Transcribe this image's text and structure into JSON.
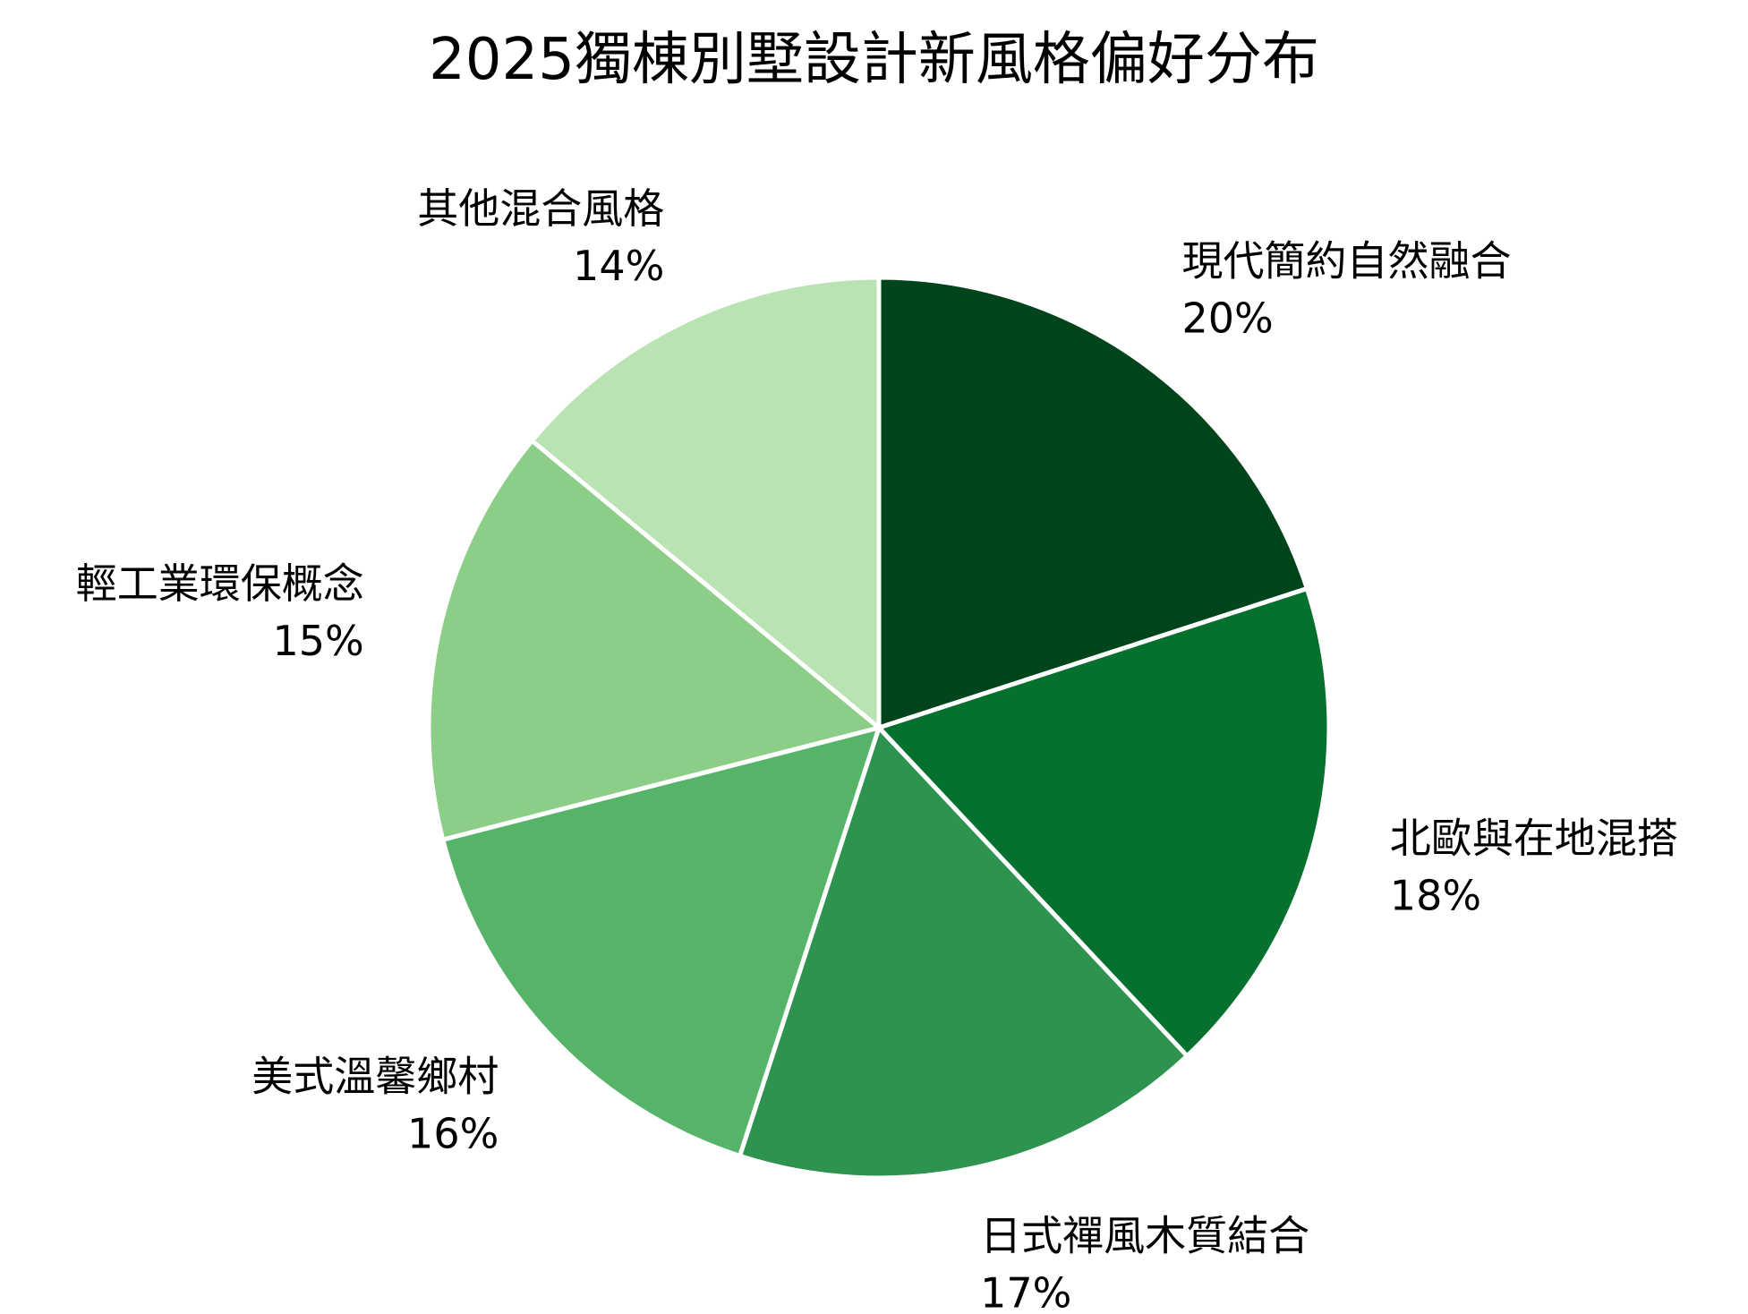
{
  "chart_data": {
    "type": "pie",
    "title": "2025獨棟別墅設計新風格偏好分布",
    "labels": [
      "現代簡約自然融合",
      "北歐與在地混搭",
      "日式禪風木質結合",
      "美式溫馨鄉村",
      "輕工業環保概念",
      "其他混合風格"
    ],
    "values": [
      20,
      18,
      17,
      16,
      15,
      14
    ],
    "value_labels": [
      "20%",
      "18%",
      "17%",
      "16%",
      "15%",
      "14%"
    ],
    "colors": [
      "#00441b",
      "#06702f",
      "#2d934f",
      "#56b469",
      "#8ccd87",
      "#b9e3b2"
    ],
    "start": "12 o'clock",
    "direction": "clockwise",
    "legend": "none"
  }
}
